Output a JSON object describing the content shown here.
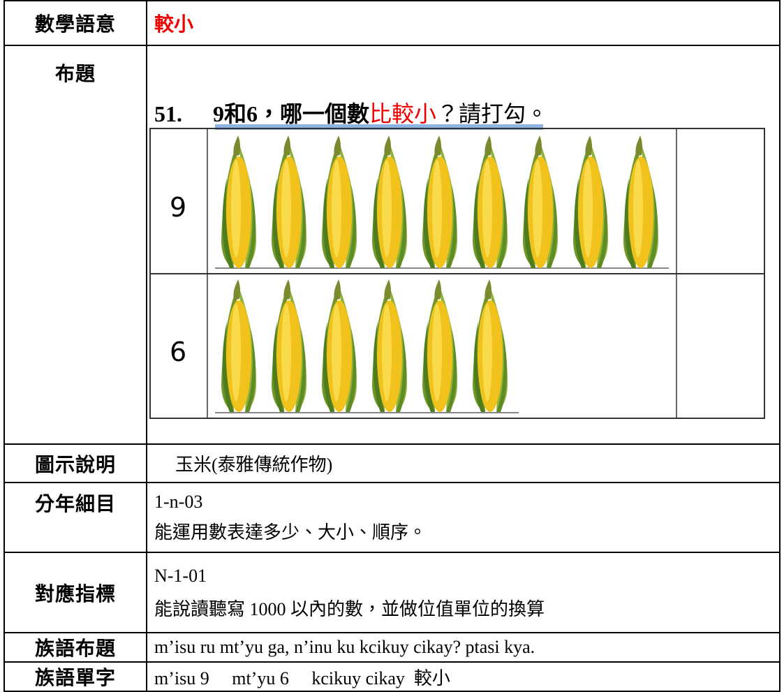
{
  "rows": [
    {
      "label": "數學語意",
      "content": "較小"
    },
    {
      "label": "布題",
      "question": {
        "number": "51.",
        "before": "9和6，哪一個數",
        "highlight": "比較小",
        "after": "？請打勾。"
      },
      "figure": {
        "rows": [
          {
            "label": "9"
          },
          {
            "label": "6"
          }
        ]
      }
    },
    {
      "label": "圖示說明",
      "content": "玉米(泰雅傳統作物)"
    },
    {
      "label": "分年細目",
      "lines": [
        "1-n-03",
        "能運用數表達多少、大小、順序。"
      ]
    },
    {
      "label": "對應指標",
      "lines": [
        "N-1-01",
        "能說讀聽寫 1000 以內的數，並做位值單位的換算"
      ]
    },
    {
      "label": "族語布題",
      "content": "m’isu ru mt’yu ga, n’inu ku kcikuy cikay? ptasi kya."
    },
    {
      "label": "族語單字",
      "content": "m’isu 9　 mt’yu 6　 kcikuy cikay  較小"
    }
  ]
}
